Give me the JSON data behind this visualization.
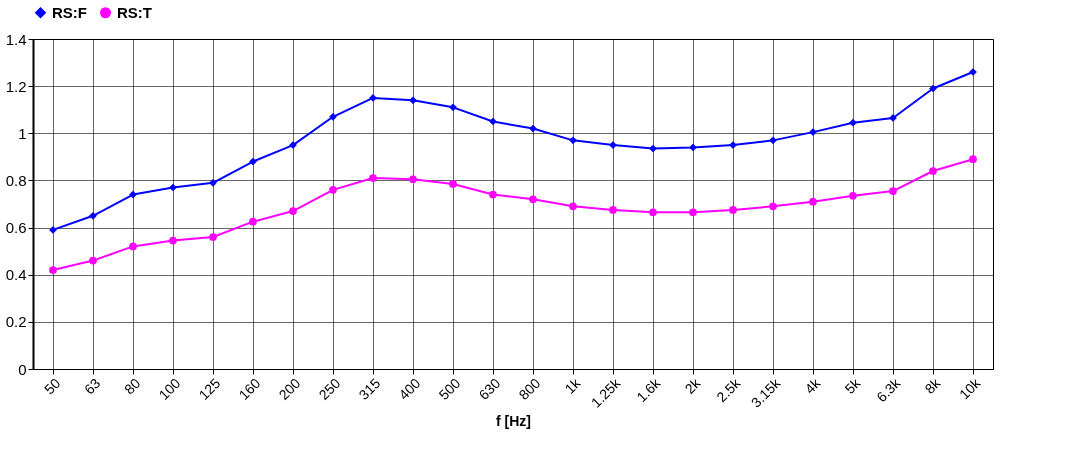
{
  "chart_data": {
    "type": "line",
    "xlabel": "f [Hz]",
    "categories": [
      "50",
      "63",
      "80",
      "100",
      "125",
      "160",
      "200",
      "250",
      "315",
      "400",
      "500",
      "630",
      "800",
      "1k",
      "1.25k",
      "1.6k",
      "2k",
      "2.5k",
      "3.15k",
      "4k",
      "5k",
      "6.3k",
      "8k",
      "10k"
    ],
    "series": [
      {
        "name": "RS:F",
        "color": "#0000ff",
        "marker": "diamond",
        "values": [
          0.59,
          0.65,
          0.74,
          0.77,
          0.79,
          0.88,
          0.95,
          1.07,
          1.15,
          1.14,
          1.11,
          1.05,
          1.02,
          0.97,
          0.95,
          0.935,
          0.94,
          0.95,
          0.97,
          1.005,
          1.045,
          1.065,
          1.19,
          1.26
        ]
      },
      {
        "name": "RS:T",
        "color": "#ff00ff",
        "marker": "circle",
        "values": [
          0.42,
          0.46,
          0.52,
          0.545,
          0.56,
          0.625,
          0.67,
          0.76,
          0.81,
          0.805,
          0.785,
          0.74,
          0.72,
          0.69,
          0.675,
          0.665,
          0.665,
          0.675,
          0.69,
          0.71,
          0.735,
          0.755,
          0.84,
          0.89
        ]
      }
    ],
    "ylim": [
      0,
      1.4
    ],
    "yticks": [
      0,
      0.2,
      0.4,
      0.6,
      0.8,
      1,
      1.2,
      1.4
    ],
    "grid": true,
    "legend": "top",
    "line_style": "solid"
  }
}
